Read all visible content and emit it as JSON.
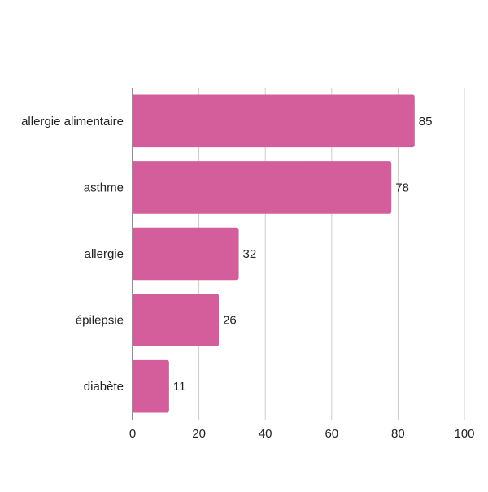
{
  "chart_data": {
    "type": "bar",
    "orientation": "horizontal",
    "categories": [
      "allergie alimentaire",
      "asthme",
      "allergie",
      "épilepsie",
      "diabète"
    ],
    "values": [
      85,
      78,
      32,
      26,
      11
    ],
    "title": "",
    "xlabel": "",
    "ylabel": "",
    "xlim": [
      0,
      100
    ],
    "x_ticks": [
      0,
      20,
      40,
      60,
      80,
      100
    ],
    "grid": "vertical",
    "legend": "none",
    "data_labels": true,
    "bar_color": "#d45d9c",
    "grid_color": "#cccccc",
    "axis_color": "#222222"
  }
}
